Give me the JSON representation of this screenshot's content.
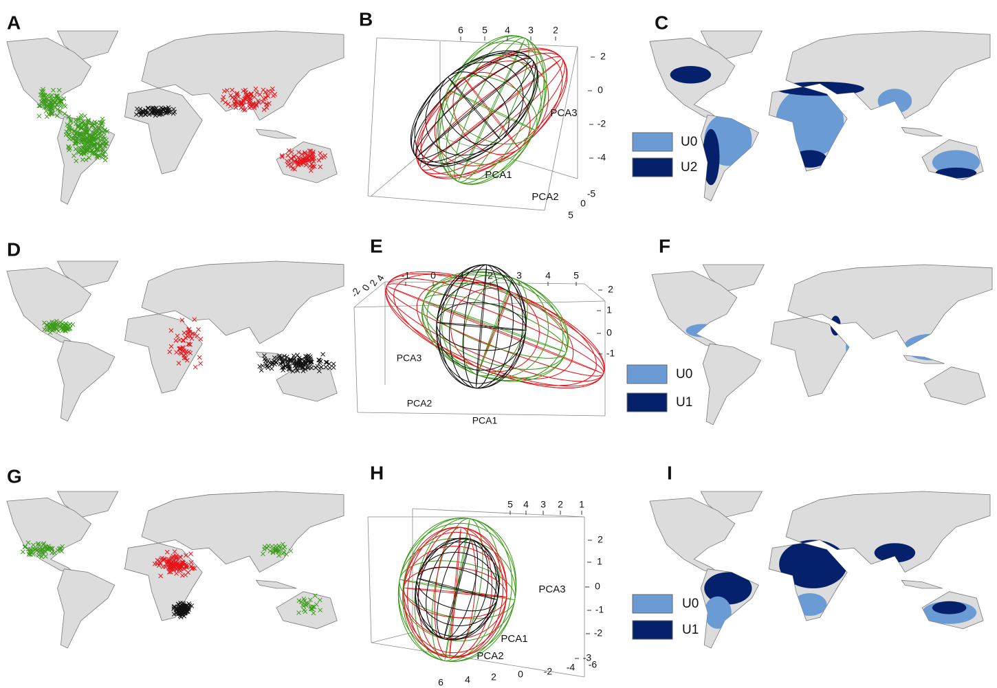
{
  "panel_labels": [
    "A",
    "B",
    "C",
    "D",
    "E",
    "F",
    "G",
    "H",
    "I"
  ],
  "pca_plots": [
    {
      "top_ticks": [
        6,
        5,
        4,
        3,
        2
      ],
      "right_ticks": [
        2,
        0,
        -2,
        -4
      ],
      "depth_ticks": [
        -5,
        0,
        5
      ],
      "axis_labels": {
        "pca1": "PCA1",
        "pca2": "PCA2",
        "pca3": "PCA3"
      }
    },
    {
      "top_ticks": [
        -1,
        0,
        1,
        2,
        3,
        4,
        5
      ],
      "right_ticks": [
        2,
        1,
        0,
        -1
      ],
      "depth_ticks": [
        -2,
        0,
        2,
        4
      ],
      "axis_labels": {
        "pca1": "PCA1",
        "pca2": "PCA2",
        "pca3": "PCA3"
      }
    },
    {
      "top_ticks": [
        5,
        4,
        3,
        2,
        1
      ],
      "right_ticks": [
        2,
        1,
        0,
        -1,
        -2,
        -3
      ],
      "depth_ticks": [
        6,
        4,
        2,
        0,
        -2,
        -4,
        -6
      ],
      "axis_labels": {
        "pca1": "PCA1",
        "pca2": "PCA2",
        "pca3": "PCA3"
      }
    }
  ],
  "legends": [
    {
      "items": [
        "U0",
        "U2"
      ],
      "colors": [
        "#6a9bd4",
        "#05216b"
      ]
    },
    {
      "items": [
        "U0",
        "U1"
      ],
      "colors": [
        "#6a9bd4",
        "#05216b"
      ]
    },
    {
      "items": [
        "U0",
        "U1"
      ],
      "colors": [
        "#6a9bd4",
        "#05216b"
      ]
    }
  ]
}
